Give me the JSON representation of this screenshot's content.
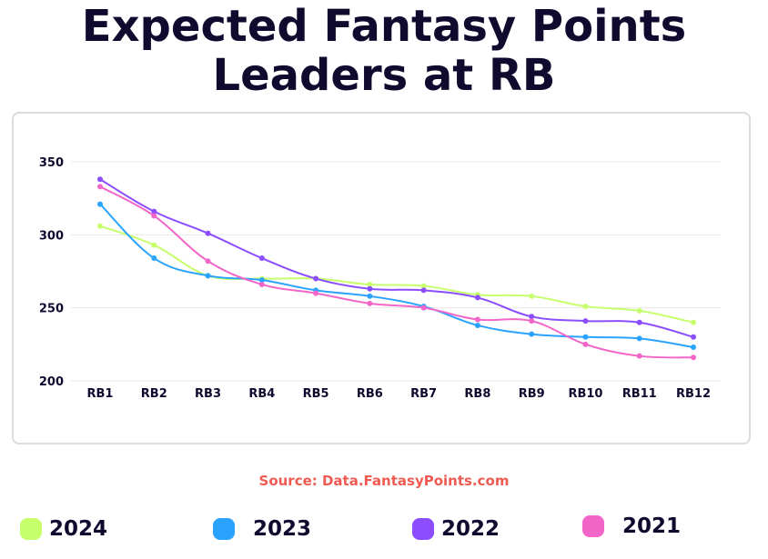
{
  "title_line1": "Expected Fantasy Points",
  "title_line2": "Leaders at RB",
  "source": "Source: Data.FantasyPoints.com",
  "legend": [
    {
      "label": "2024",
      "color": "#c6ff6b"
    },
    {
      "label": "2023",
      "color": "#2aa3ff"
    },
    {
      "label": "2022",
      "color": "#8c4dff"
    },
    {
      "label": "2021",
      "color": "#f266c8"
    }
  ],
  "chart_data": {
    "type": "line",
    "categories": [
      "RB1",
      "RB2",
      "RB3",
      "RB4",
      "RB5",
      "RB6",
      "RB7",
      "RB8",
      "RB9",
      "RB10",
      "RB11",
      "RB12"
    ],
    "ylim": [
      200,
      350
    ],
    "yticks": [
      200,
      250,
      300,
      350
    ],
    "grid": true,
    "series": [
      {
        "name": "2024",
        "color": "#c6ff6b",
        "values": [
          306,
          293,
          272,
          270,
          270,
          266,
          265,
          259,
          258,
          251,
          248,
          240
        ]
      },
      {
        "name": "2023",
        "color": "#2aa3ff",
        "values": [
          321,
          284,
          272,
          269,
          262,
          258,
          251,
          238,
          232,
          230,
          229,
          223
        ]
      },
      {
        "name": "2022",
        "color": "#8c4dff",
        "values": [
          338,
          316,
          301,
          284,
          270,
          263,
          262,
          257,
          244,
          241,
          240,
          230
        ]
      },
      {
        "name": "2021",
        "color": "#f266c8",
        "values": [
          333,
          313,
          282,
          266,
          260,
          253,
          250,
          242,
          241,
          225,
          217,
          216
        ]
      }
    ]
  }
}
